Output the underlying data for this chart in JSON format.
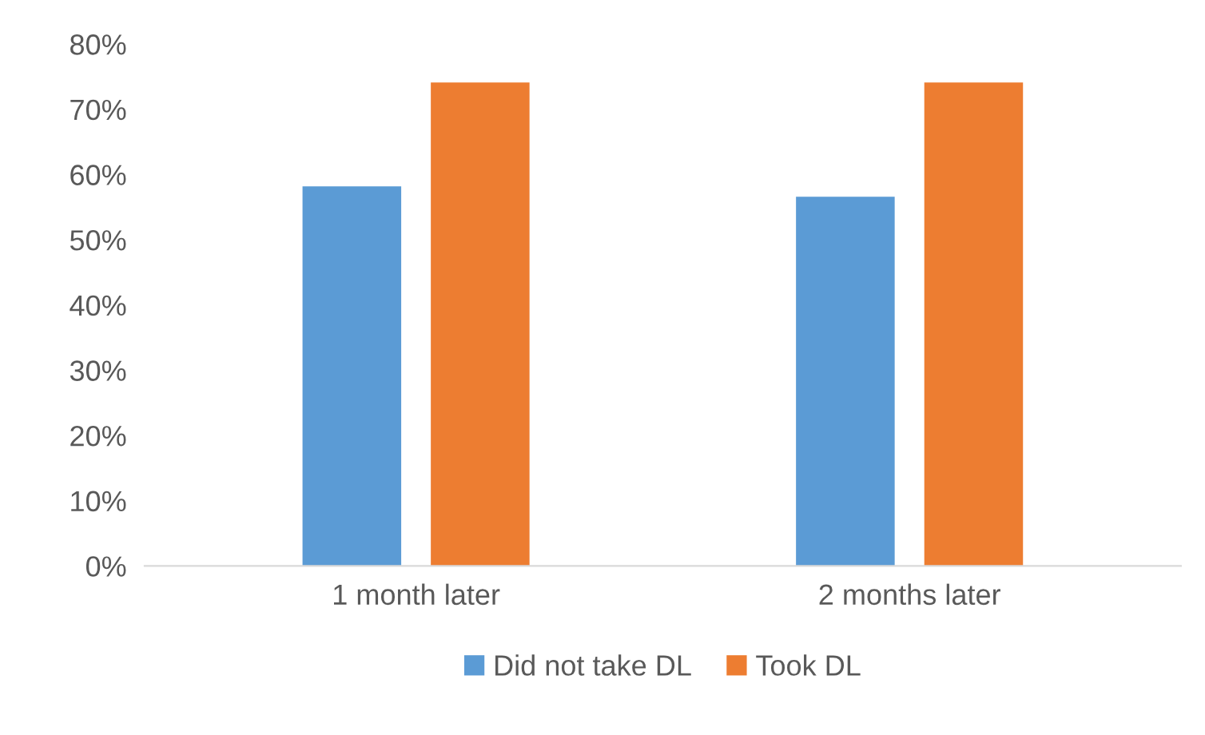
{
  "chart_data": {
    "type": "bar",
    "categories": [
      "1 month later",
      "2 months later"
    ],
    "series": [
      {
        "name": "Did not take DL",
        "color": "#5b9bd5",
        "values": [
          58.2,
          56.6
        ]
      },
      {
        "name": "Took DL",
        "color": "#ed7d31",
        "values": [
          74.1,
          74.1
        ]
      }
    ],
    "ylim": [
      0,
      80
    ],
    "yticks": [
      {
        "value": 0,
        "label": "0%"
      },
      {
        "value": 10,
        "label": "10%"
      },
      {
        "value": 20,
        "label": "20%"
      },
      {
        "value": 30,
        "label": "30%"
      },
      {
        "value": 40,
        "label": "40%"
      },
      {
        "value": 50,
        "label": "50%"
      },
      {
        "value": 60,
        "label": "60%"
      },
      {
        "value": 70,
        "label": "70%"
      },
      {
        "value": 80,
        "label": "80%"
      }
    ],
    "grid": false,
    "legend": "bottom"
  }
}
